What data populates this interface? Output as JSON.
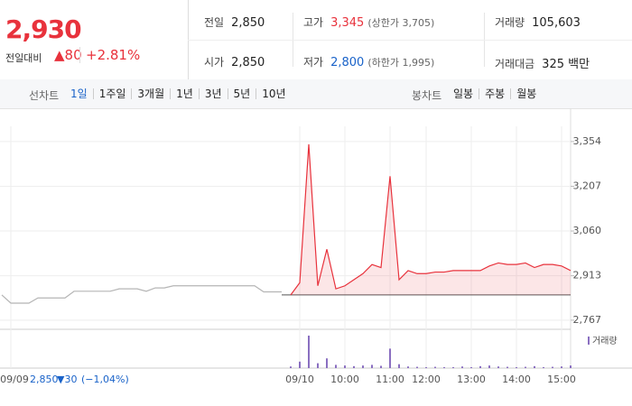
{
  "header": {
    "price": "2,930",
    "change_label": "전일대비",
    "change": "▲80",
    "change_pct": "+2.81%",
    "stats": [
      {
        "label": "전일",
        "value": "2,850"
      },
      {
        "label": "고가",
        "value": "3,345",
        "note": "(상한가 3,705)"
      },
      {
        "label": "거래량",
        "value": "105,603"
      },
      {
        "label": "시가",
        "value": "2,850"
      },
      {
        "label": "저가",
        "value": "2,800",
        "note": "(하한가 1,995)"
      },
      {
        "label": "거래대금",
        "value": "325 백만"
      }
    ]
  },
  "tabs": {
    "line_label": "선차트",
    "line": [
      "1일",
      "1주일",
      "3개월",
      "1년",
      "3년",
      "5년",
      "10년"
    ],
    "candle_label": "봉차트",
    "candle": [
      "일봉",
      "주봉",
      "월봉"
    ]
  },
  "footer": {
    "price": "2,850",
    "change": "▼30",
    "pct": "(−1,04%)"
  },
  "chart_data": {
    "type": "line",
    "categories": [
      null,
      "09/09",
      null,
      null,
      null,
      null,
      null,
      null,
      null,
      null,
      null,
      null,
      null,
      null,
      null,
      null,
      null,
      null,
      null,
      null,
      null,
      null,
      null,
      null,
      null,
      null,
      null,
      null,
      null,
      null,
      null,
      null,
      null,
      "09/10",
      null,
      null,
      null,
      null,
      "10:00",
      null,
      null,
      null,
      null,
      "11:00",
      null,
      null,
      null,
      "12:00",
      null,
      null,
      null,
      null,
      "13:00",
      null,
      null,
      null,
      null,
      "14:00",
      null,
      null,
      null,
      null,
      "15:00",
      null
    ],
    "series": [
      {
        "color": "#b5b5b5",
        "values": [
          2850,
          2823,
          2823,
          2823,
          2840,
          2840,
          2840,
          2840,
          2862,
          2862,
          2862,
          2862,
          2862,
          2870,
          2870,
          2870,
          2862,
          2873,
          2873,
          2880,
          2880,
          2880,
          2880,
          2880,
          2880,
          2880,
          2880,
          2880,
          2880,
          2860,
          2860,
          2860,
          null,
          null,
          null,
          null,
          null,
          null,
          null,
          null,
          null,
          null,
          null,
          null,
          null,
          null,
          null,
          null,
          null,
          null,
          null,
          null,
          null,
          null,
          null,
          null,
          null,
          null,
          null,
          null,
          null,
          null,
          null,
          null
        ]
      },
      {
        "color": "#e8323c",
        "values": [
          null,
          null,
          null,
          null,
          null,
          null,
          null,
          null,
          null,
          null,
          null,
          null,
          null,
          null,
          null,
          null,
          null,
          null,
          null,
          null,
          null,
          null,
          null,
          null,
          null,
          null,
          null,
          null,
          null,
          null,
          null,
          null,
          2850,
          2890,
          3345,
          2880,
          3000,
          2870,
          2880,
          2900,
          2920,
          2950,
          2940,
          3240,
          2900,
          2930,
          2920,
          2920,
          2925,
          2925,
          2930,
          2930,
          2930,
          2930,
          2945,
          2955,
          2950,
          2950,
          2955,
          2940,
          2950,
          2950,
          2945,
          2930
        ]
      }
    ],
    "baseline": 2850,
    "volume": {
      "name": "거래량",
      "color": "#8a6fc1",
      "values": [
        null,
        null,
        null,
        null,
        null,
        null,
        null,
        null,
        null,
        null,
        null,
        null,
        null,
        null,
        null,
        null,
        null,
        null,
        null,
        null,
        null,
        null,
        null,
        null,
        null,
        null,
        null,
        null,
        null,
        null,
        null,
        null,
        5,
        20,
        100,
        15,
        30,
        10,
        8,
        6,
        8,
        10,
        7,
        60,
        12,
        5,
        4,
        3,
        4,
        3,
        3,
        5,
        3,
        6,
        8,
        5,
        4,
        3,
        4,
        6,
        3,
        4,
        5,
        8
      ]
    },
    "ylim": [
      2737,
      3404
    ],
    "yticks": [
      {
        "value": 2767,
        "label": "2,767"
      },
      {
        "value": 2913,
        "label": "2,913"
      },
      {
        "value": 3060,
        "label": "3,060"
      },
      {
        "value": 3207,
        "label": "3,207"
      },
      {
        "value": 3354,
        "label": "3,354"
      }
    ],
    "grid": true
  }
}
